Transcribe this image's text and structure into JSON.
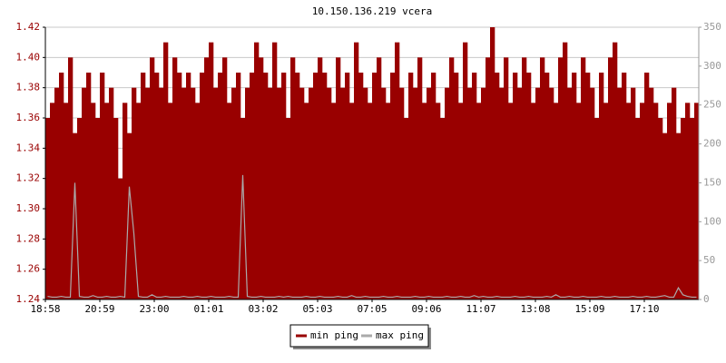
{
  "chart_data": {
    "type": "bar",
    "title": "10.150.136.219 vcera",
    "categories": [
      "18:58",
      null,
      null,
      null,
      null,
      null,
      null,
      null,
      null,
      null,
      null,
      null,
      "20:59",
      null,
      null,
      null,
      null,
      null,
      null,
      null,
      null,
      null,
      null,
      null,
      "23:00",
      null,
      null,
      null,
      null,
      null,
      null,
      null,
      null,
      null,
      null,
      null,
      "01:01",
      null,
      null,
      null,
      null,
      null,
      null,
      null,
      null,
      null,
      null,
      null,
      "03:02",
      null,
      null,
      null,
      null,
      null,
      null,
      null,
      null,
      null,
      null,
      null,
      "05:03",
      null,
      null,
      null,
      null,
      null,
      null,
      null,
      null,
      null,
      null,
      null,
      "07:05",
      null,
      null,
      null,
      null,
      null,
      null,
      null,
      null,
      null,
      null,
      null,
      "09:06",
      null,
      null,
      null,
      null,
      null,
      null,
      null,
      null,
      null,
      null,
      null,
      "11:07",
      null,
      null,
      null,
      null,
      null,
      null,
      null,
      null,
      null,
      null,
      null,
      "13:08",
      null,
      null,
      null,
      null,
      null,
      null,
      null,
      null,
      null,
      null,
      null,
      "15:09",
      null,
      null,
      null,
      null,
      null,
      null,
      null,
      null,
      null,
      null,
      null,
      "17:10",
      null,
      null,
      null,
      null,
      null,
      null,
      null,
      null,
      null,
      null,
      null
    ],
    "series": [
      {
        "name": "min ping",
        "color": "#990000",
        "values": [
          1.36,
          1.37,
          1.38,
          1.39,
          1.37,
          1.4,
          1.35,
          1.36,
          1.38,
          1.39,
          1.37,
          1.36,
          1.39,
          1.37,
          1.38,
          1.36,
          1.32,
          1.37,
          1.35,
          1.38,
          1.37,
          1.39,
          1.38,
          1.4,
          1.39,
          1.38,
          1.41,
          1.37,
          1.4,
          1.39,
          1.38,
          1.39,
          1.38,
          1.37,
          1.39,
          1.4,
          1.41,
          1.38,
          1.39,
          1.4,
          1.37,
          1.38,
          1.39,
          1.36,
          1.38,
          1.39,
          1.41,
          1.4,
          1.39,
          1.38,
          1.41,
          1.38,
          1.39,
          1.36,
          1.4,
          1.39,
          1.38,
          1.37,
          1.38,
          1.39,
          1.4,
          1.39,
          1.38,
          1.37,
          1.4,
          1.38,
          1.39,
          1.37,
          1.41,
          1.39,
          1.38,
          1.37,
          1.39,
          1.4,
          1.38,
          1.37,
          1.39,
          1.41,
          1.38,
          1.36,
          1.39,
          1.38,
          1.4,
          1.37,
          1.38,
          1.39,
          1.37,
          1.36,
          1.38,
          1.4,
          1.39,
          1.37,
          1.41,
          1.38,
          1.39,
          1.37,
          1.38,
          1.4,
          1.42,
          1.39,
          1.38,
          1.4,
          1.37,
          1.39,
          1.38,
          1.4,
          1.39,
          1.37,
          1.38,
          1.4,
          1.39,
          1.38,
          1.37,
          1.4,
          1.41,
          1.38,
          1.39,
          1.37,
          1.4,
          1.39,
          1.38,
          1.36,
          1.39,
          1.37,
          1.4,
          1.41,
          1.38,
          1.39,
          1.37,
          1.38,
          1.36,
          1.37,
          1.39,
          1.38,
          1.37,
          1.36,
          1.35,
          1.37,
          1.38,
          1.35,
          1.36,
          1.37,
          1.36,
          1.37
        ]
      },
      {
        "name": "max ping",
        "color": "#aaaaaa",
        "axis": "y2",
        "values": [
          4,
          3,
          3,
          4,
          3,
          3,
          150,
          4,
          3,
          3,
          5,
          3,
          3,
          4,
          3,
          3,
          4,
          3,
          145,
          85,
          4,
          3,
          3,
          6,
          3,
          3,
          4,
          3,
          3,
          3,
          4,
          3,
          3,
          4,
          3,
          3,
          4,
          3,
          3,
          3,
          4,
          3,
          3,
          160,
          4,
          3,
          3,
          4,
          3,
          3,
          3,
          4,
          3,
          4,
          3,
          3,
          3,
          4,
          3,
          3,
          4,
          3,
          3,
          3,
          4,
          3,
          3,
          5,
          3,
          3,
          4,
          3,
          3,
          3,
          4,
          3,
          3,
          4,
          3,
          3,
          3,
          4,
          3,
          3,
          4,
          3,
          3,
          3,
          4,
          3,
          3,
          4,
          3,
          3,
          5,
          3,
          4,
          3,
          3,
          4,
          3,
          3,
          3,
          4,
          3,
          3,
          4,
          3,
          3,
          3,
          4,
          3,
          6,
          3,
          3,
          4,
          3,
          3,
          4,
          3,
          3,
          3,
          4,
          3,
          3,
          4,
          3,
          3,
          3,
          4,
          3,
          3,
          4,
          3,
          3,
          4,
          5,
          3,
          3,
          15,
          6,
          4,
          3,
          3
        ]
      }
    ],
    "ylim": [
      1.24,
      1.42
    ],
    "yticks": [
      1.24,
      1.26,
      1.28,
      {
        "value": 1.3,
        "label": "1.30"
      },
      1.32,
      1.34,
      1.36,
      1.38,
      {
        "value": 1.4,
        "label": "1.40"
      },
      1.42
    ],
    "y2lim": [
      0,
      350
    ],
    "y2ticks": [
      0,
      50,
      100,
      150,
      200,
      250,
      300,
      350
    ],
    "grid": true,
    "legend": "bottom"
  }
}
